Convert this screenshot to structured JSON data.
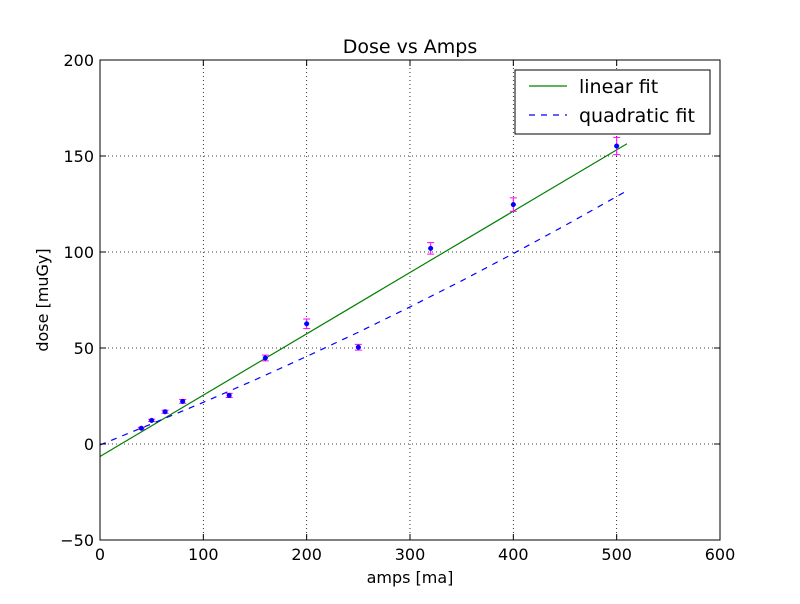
{
  "chart_data": {
    "type": "scatter",
    "title": "Dose vs Amps",
    "xlabel": "amps [ma]",
    "ylabel": "dose [muGy]",
    "xlim": [
      0,
      600
    ],
    "ylim": [
      -50,
      200
    ],
    "xticks": [
      0,
      100,
      200,
      300,
      400,
      500,
      600
    ],
    "yticks": [
      -50,
      0,
      50,
      100,
      150,
      200
    ],
    "xtick_labels": [
      "0",
      "100",
      "200",
      "300",
      "400",
      "500",
      "600"
    ],
    "ytick_labels": [
      "−50",
      "0",
      "50",
      "100",
      "150",
      "200"
    ],
    "grid": true,
    "legend_position": "top-right",
    "points": {
      "x": [
        40,
        50,
        63,
        80,
        125,
        160,
        200,
        250,
        320,
        400,
        500
      ],
      "y": [
        8.2,
        12.3,
        16.8,
        22.2,
        25.3,
        44.8,
        62.6,
        50.4,
        101.9,
        124.7,
        155.2
      ],
      "yerr": [
        0.5,
        0.6,
        0.8,
        1.0,
        1.1,
        1.5,
        2.5,
        1.5,
        3.0,
        3.5,
        4.5
      ],
      "marker_color": "#0000ff",
      "errorbar_color": "#ff00ff"
    },
    "series": [
      {
        "name": "linear fit",
        "style": "solid",
        "color": "#008000",
        "x": [
          0,
          510
        ],
        "y": [
          -6.5,
          156.4
        ]
      },
      {
        "name": "quadratic fit",
        "style": "dashed",
        "color": "#0000ff",
        "x": [
          0,
          50,
          100,
          150,
          200,
          250,
          300,
          350,
          400,
          450,
          510
        ],
        "y": [
          -0.5,
          10.5,
          21.7,
          33.4,
          45.6,
          58.2,
          71.4,
          85.0,
          99.2,
          113.8,
          131.9
        ]
      }
    ]
  }
}
